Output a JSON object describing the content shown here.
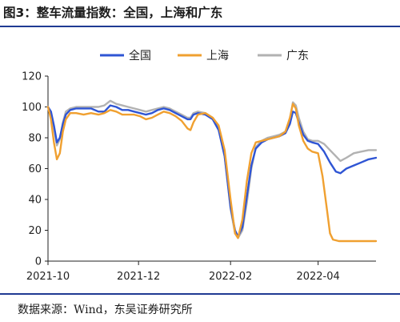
{
  "figure": {
    "title": "图3：整车流量指数：全国，上海和广东",
    "source": "数据来源：Wind，东吴证券研究所"
  },
  "colors": {
    "rule": "#1f3a93",
    "axis": "#222222"
  },
  "chart_data": {
    "type": "line",
    "title": "",
    "xlabel": "",
    "ylabel": "",
    "ylim": [
      0,
      120
    ],
    "yticks": [
      0,
      20,
      40,
      60,
      80,
      100,
      120
    ],
    "xlim": [
      "2021-10-01",
      "2022-05-10"
    ],
    "xticks": [
      {
        "date": "2021-10-01",
        "label": "2021-10"
      },
      {
        "date": "2021-12-01",
        "label": "2021-12"
      },
      {
        "date": "2022-02-01",
        "label": "2022-02"
      },
      {
        "date": "2022-04-01",
        "label": "2022-04"
      }
    ],
    "grid": false,
    "legend_position": "top-center",
    "series": [
      {
        "name": "全国",
        "color": "#2f55d4",
        "points": [
          [
            "2021-10-01",
            100
          ],
          [
            "2021-10-03",
            97
          ],
          [
            "2021-10-05",
            88
          ],
          [
            "2021-10-07",
            77
          ],
          [
            "2021-10-09",
            80
          ],
          [
            "2021-10-11",
            89
          ],
          [
            "2021-10-13",
            95
          ],
          [
            "2021-10-16",
            98
          ],
          [
            "2021-10-20",
            99
          ],
          [
            "2021-10-25",
            99
          ],
          [
            "2021-10-30",
            99
          ],
          [
            "2021-11-04",
            97
          ],
          [
            "2021-11-08",
            97
          ],
          [
            "2021-11-12",
            101
          ],
          [
            "2021-11-16",
            100
          ],
          [
            "2021-11-20",
            98
          ],
          [
            "2021-11-24",
            98
          ],
          [
            "2021-11-28",
            97
          ],
          [
            "2021-12-02",
            96
          ],
          [
            "2021-12-06",
            95
          ],
          [
            "2021-12-10",
            96
          ],
          [
            "2021-12-14",
            98
          ],
          [
            "2021-12-18",
            99
          ],
          [
            "2021-12-22",
            98
          ],
          [
            "2021-12-26",
            96
          ],
          [
            "2021-12-30",
            94
          ],
          [
            "2022-01-03",
            92
          ],
          [
            "2022-01-05",
            92
          ],
          [
            "2022-01-07",
            95
          ],
          [
            "2022-01-10",
            96
          ],
          [
            "2022-01-15",
            95
          ],
          [
            "2022-01-20",
            92
          ],
          [
            "2022-01-24",
            85
          ],
          [
            "2022-01-28",
            68
          ],
          [
            "2022-02-01",
            35
          ],
          [
            "2022-02-04",
            20
          ],
          [
            "2022-02-06",
            16
          ],
          [
            "2022-02-09",
            22
          ],
          [
            "2022-02-12",
            42
          ],
          [
            "2022-02-15",
            62
          ],
          [
            "2022-02-18",
            73
          ],
          [
            "2022-02-22",
            77
          ],
          [
            "2022-02-26",
            79
          ],
          [
            "2022-03-02",
            80
          ],
          [
            "2022-03-06",
            81
          ],
          [
            "2022-03-10",
            83
          ],
          [
            "2022-03-13",
            89
          ],
          [
            "2022-03-15",
            97
          ],
          [
            "2022-03-17",
            96
          ],
          [
            "2022-03-19",
            90
          ],
          [
            "2022-03-22",
            82
          ],
          [
            "2022-03-25",
            78
          ],
          [
            "2022-03-28",
            77
          ],
          [
            "2022-04-01",
            76
          ],
          [
            "2022-04-05",
            71
          ],
          [
            "2022-04-09",
            64
          ],
          [
            "2022-04-13",
            58
          ],
          [
            "2022-04-16",
            57
          ],
          [
            "2022-04-20",
            60
          ],
          [
            "2022-04-25",
            62
          ],
          [
            "2022-04-30",
            64
          ],
          [
            "2022-05-05",
            66
          ],
          [
            "2022-05-10",
            67
          ]
        ]
      },
      {
        "name": "上海",
        "color": "#f0a030",
        "points": [
          [
            "2021-10-01",
            100
          ],
          [
            "2021-10-03",
            92
          ],
          [
            "2021-10-05",
            77
          ],
          [
            "2021-10-07",
            66
          ],
          [
            "2021-10-09",
            70
          ],
          [
            "2021-10-11",
            84
          ],
          [
            "2021-10-13",
            92
          ],
          [
            "2021-10-16",
            96
          ],
          [
            "2021-10-20",
            96
          ],
          [
            "2021-10-25",
            95
          ],
          [
            "2021-10-30",
            96
          ],
          [
            "2021-11-04",
            95
          ],
          [
            "2021-11-08",
            96
          ],
          [
            "2021-11-12",
            98
          ],
          [
            "2021-11-16",
            97
          ],
          [
            "2021-11-20",
            95
          ],
          [
            "2021-11-24",
            95
          ],
          [
            "2021-11-28",
            95
          ],
          [
            "2021-12-02",
            94
          ],
          [
            "2021-12-06",
            92
          ],
          [
            "2021-12-10",
            93
          ],
          [
            "2021-12-14",
            95
          ],
          [
            "2021-12-18",
            97
          ],
          [
            "2021-12-22",
            96
          ],
          [
            "2021-12-26",
            94
          ],
          [
            "2021-12-30",
            91
          ],
          [
            "2022-01-03",
            86
          ],
          [
            "2022-01-05",
            85
          ],
          [
            "2022-01-07",
            90
          ],
          [
            "2022-01-10",
            95
          ],
          [
            "2022-01-15",
            96
          ],
          [
            "2022-01-20",
            93
          ],
          [
            "2022-01-24",
            88
          ],
          [
            "2022-01-28",
            72
          ],
          [
            "2022-02-01",
            40
          ],
          [
            "2022-02-04",
            18
          ],
          [
            "2022-02-06",
            15
          ],
          [
            "2022-02-09",
            27
          ],
          [
            "2022-02-12",
            52
          ],
          [
            "2022-02-15",
            70
          ],
          [
            "2022-02-18",
            77
          ],
          [
            "2022-02-22",
            78
          ],
          [
            "2022-02-26",
            79
          ],
          [
            "2022-03-02",
            80
          ],
          [
            "2022-03-06",
            81
          ],
          [
            "2022-03-10",
            84
          ],
          [
            "2022-03-13",
            93
          ],
          [
            "2022-03-15",
            102
          ],
          [
            "2022-03-17",
            99
          ],
          [
            "2022-03-19",
            88
          ],
          [
            "2022-03-22",
            78
          ],
          [
            "2022-03-25",
            73
          ],
          [
            "2022-03-28",
            71
          ],
          [
            "2022-04-01",
            70
          ],
          [
            "2022-04-04",
            55
          ],
          [
            "2022-04-07",
            33
          ],
          [
            "2022-04-09",
            18
          ],
          [
            "2022-04-11",
            14
          ],
          [
            "2022-04-15",
            13
          ],
          [
            "2022-04-20",
            13
          ],
          [
            "2022-04-25",
            13
          ],
          [
            "2022-04-30",
            13
          ],
          [
            "2022-05-05",
            13
          ],
          [
            "2022-05-10",
            13
          ]
        ]
      },
      {
        "name": "广东",
        "color": "#b2b2b2",
        "points": [
          [
            "2021-10-01",
            100
          ],
          [
            "2021-10-03",
            96
          ],
          [
            "2021-10-05",
            87
          ],
          [
            "2021-10-07",
            75
          ],
          [
            "2021-10-09",
            79
          ],
          [
            "2021-10-11",
            90
          ],
          [
            "2021-10-13",
            97
          ],
          [
            "2021-10-16",
            99
          ],
          [
            "2021-10-20",
            100
          ],
          [
            "2021-10-25",
            100
          ],
          [
            "2021-10-30",
            100
          ],
          [
            "2021-11-04",
            100
          ],
          [
            "2021-11-08",
            101
          ],
          [
            "2021-11-12",
            104
          ],
          [
            "2021-11-16",
            102
          ],
          [
            "2021-11-20",
            101
          ],
          [
            "2021-11-24",
            100
          ],
          [
            "2021-11-28",
            99
          ],
          [
            "2021-12-02",
            98
          ],
          [
            "2021-12-06",
            97
          ],
          [
            "2021-12-10",
            98
          ],
          [
            "2021-12-14",
            99
          ],
          [
            "2021-12-18",
            100
          ],
          [
            "2021-12-22",
            99
          ],
          [
            "2021-12-26",
            97
          ],
          [
            "2021-12-30",
            95
          ],
          [
            "2022-01-03",
            93
          ],
          [
            "2022-01-05",
            93
          ],
          [
            "2022-01-07",
            96
          ],
          [
            "2022-01-10",
            97
          ],
          [
            "2022-01-15",
            96
          ],
          [
            "2022-01-20",
            93
          ],
          [
            "2022-01-24",
            86
          ],
          [
            "2022-01-28",
            68
          ],
          [
            "2022-02-01",
            34
          ],
          [
            "2022-02-04",
            18
          ],
          [
            "2022-02-06",
            15
          ],
          [
            "2022-02-09",
            20
          ],
          [
            "2022-02-12",
            38
          ],
          [
            "2022-02-15",
            60
          ],
          [
            "2022-02-18",
            74
          ],
          [
            "2022-02-22",
            78
          ],
          [
            "2022-02-26",
            80
          ],
          [
            "2022-03-02",
            81
          ],
          [
            "2022-03-06",
            82
          ],
          [
            "2022-03-10",
            84
          ],
          [
            "2022-03-13",
            92
          ],
          [
            "2022-03-15",
            103
          ],
          [
            "2022-03-17",
            101
          ],
          [
            "2022-03-19",
            93
          ],
          [
            "2022-03-22",
            84
          ],
          [
            "2022-03-25",
            79
          ],
          [
            "2022-03-28",
            78
          ],
          [
            "2022-04-01",
            78
          ],
          [
            "2022-04-05",
            76
          ],
          [
            "2022-04-09",
            72
          ],
          [
            "2022-04-13",
            68
          ],
          [
            "2022-04-16",
            65
          ],
          [
            "2022-04-20",
            67
          ],
          [
            "2022-04-25",
            70
          ],
          [
            "2022-04-30",
            71
          ],
          [
            "2022-05-05",
            72
          ],
          [
            "2022-05-10",
            72
          ]
        ]
      }
    ]
  }
}
